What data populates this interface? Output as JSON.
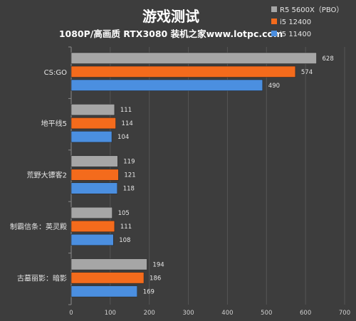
{
  "chart_data": {
    "type": "bar",
    "orientation": "horizontal",
    "title": "游戏测试",
    "subtitle": "1080P/高画质 RTX3080 装机之家www.lotpc.com",
    "categories": [
      "CS:GO",
      "地平线5",
      "荒野大镖客2",
      "制霸信条：英灵殿",
      "古墓丽影：暗影"
    ],
    "series": [
      {
        "name": "R5 5600X（PBO）",
        "color": "#a6a6a6",
        "values": [
          628,
          111,
          119,
          105,
          194
        ]
      },
      {
        "name": "i5 12400",
        "color": "#f46b1c",
        "values": [
          574,
          114,
          121,
          111,
          186
        ]
      },
      {
        "name": "i5 11400",
        "color": "#4b8fe0",
        "values": [
          490,
          104,
          118,
          108,
          169
        ]
      }
    ],
    "xlim": [
      0,
      700
    ],
    "x_ticks": [
      "0",
      "100",
      "200",
      "300",
      "400",
      "500",
      "600",
      "700"
    ],
    "grid": true,
    "legend_position": "top-right"
  }
}
